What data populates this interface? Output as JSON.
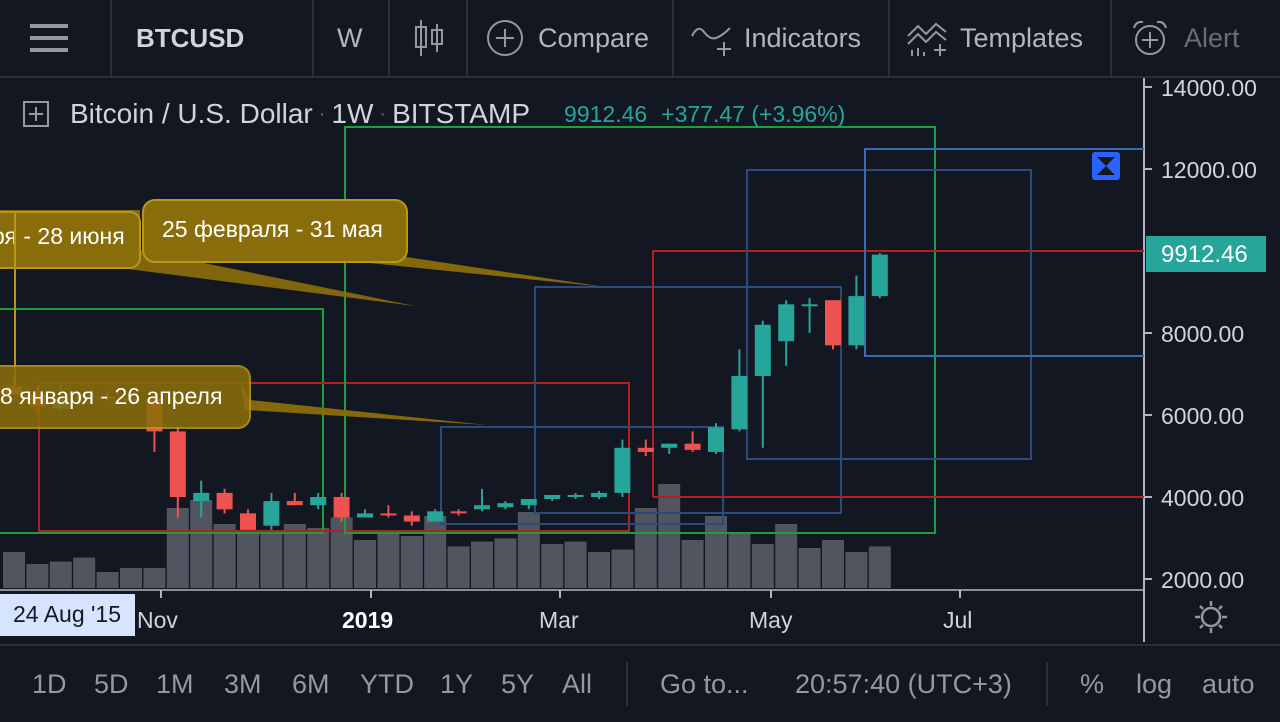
{
  "toolbar": {
    "symbol": "BTCUSD",
    "interval": "W",
    "compare_label": "Compare",
    "indicators_label": "Indicators",
    "templates_label": "Templates",
    "alert_label": "Alert"
  },
  "legend": {
    "name": "Bitcoin / U.S. Dollar",
    "interval": "1W",
    "exchange": "BITSTAMP",
    "price": "9912.46",
    "change": "+377.47 (+3.96%)"
  },
  "price_axis": {
    "ticks": [
      "14000.00",
      "12000.00",
      "8000.00",
      "6000.00",
      "4000.00",
      "2000.00"
    ],
    "current_price_label": "9912.46"
  },
  "time_axis": {
    "cursor_label": "24 Aug '15",
    "ticks": [
      "Nov",
      "2019",
      "Mar",
      "May",
      "Jul"
    ]
  },
  "callouts": [
    {
      "text": "ря - 28 июня"
    },
    {
      "text": "25 февраля - 31 мая"
    },
    {
      "text": "8 января - 26 апреля"
    }
  ],
  "bottom_bar": {
    "ranges": [
      "1D",
      "5D",
      "1M",
      "3M",
      "6M",
      "YTD",
      "1Y",
      "5Y",
      "All"
    ],
    "goto": "Go to...",
    "time": "20:57:40 (UTC+3)",
    "percent": "%",
    "log": "log",
    "auto": "auto"
  },
  "colors": {
    "up": "#26a69a",
    "down": "#ef5350",
    "volume": "#5d606b",
    "callout": "#8a6d0b",
    "background": "#131722"
  },
  "chart_data": {
    "type": "candlestick",
    "interval": "1W",
    "ylim": [
      2000,
      14000
    ],
    "current_price": 9912.46,
    "candles": [
      {
        "o": 6700,
        "h": 6900,
        "l": 6500,
        "c": 6500
      },
      {
        "o": 6500,
        "h": 6700,
        "l": 6100,
        "c": 6200
      },
      {
        "o": 6150,
        "h": 6800,
        "l": 6100,
        "c": 6400
      },
      {
        "o": 6400,
        "h": 6550,
        "l": 6300,
        "c": 6450
      },
      {
        "o": 6450,
        "h": 6600,
        "l": 6350,
        "c": 6400
      },
      {
        "o": 6400,
        "h": 6550,
        "l": 6300,
        "c": 6350
      },
      {
        "o": 6400,
        "h": 6500,
        "l": 5100,
        "c": 5600
      },
      {
        "o": 5600,
        "h": 5700,
        "l": 3500,
        "c": 4000
      },
      {
        "o": 3900,
        "h": 4400,
        "l": 3500,
        "c": 4100
      },
      {
        "o": 4100,
        "h": 4200,
        "l": 3600,
        "c": 3700
      },
      {
        "o": 3600,
        "h": 3700,
        "l": 3200,
        "c": 3200
      },
      {
        "o": 3300,
        "h": 4100,
        "l": 3200,
        "c": 3900
      },
      {
        "o": 3900,
        "h": 4100,
        "l": 3800,
        "c": 3800
      },
      {
        "o": 3800,
        "h": 4100,
        "l": 3700,
        "c": 4000
      },
      {
        "o": 4000,
        "h": 4100,
        "l": 3400,
        "c": 3500
      },
      {
        "o": 3500,
        "h": 3700,
        "l": 3500,
        "c": 3600
      },
      {
        "o": 3600,
        "h": 3800,
        "l": 3500,
        "c": 3550
      },
      {
        "o": 3550,
        "h": 3650,
        "l": 3300,
        "c": 3400
      },
      {
        "o": 3400,
        "h": 3700,
        "l": 3400,
        "c": 3650
      },
      {
        "o": 3650,
        "h": 3700,
        "l": 3550,
        "c": 3600
      },
      {
        "o": 3700,
        "h": 4200,
        "l": 3650,
        "c": 3800
      },
      {
        "o": 3750,
        "h": 3900,
        "l": 3700,
        "c": 3850
      },
      {
        "o": 3800,
        "h": 3950,
        "l": 3700,
        "c": 3950
      },
      {
        "o": 3950,
        "h": 4050,
        "l": 3900,
        "c": 4050
      },
      {
        "o": 4000,
        "h": 4100,
        "l": 3950,
        "c": 4050
      },
      {
        "o": 4000,
        "h": 4150,
        "l": 3950,
        "c": 4100
      },
      {
        "o": 4100,
        "h": 5400,
        "l": 4000,
        "c": 5200
      },
      {
        "o": 5200,
        "h": 5400,
        "l": 5000,
        "c": 5100
      },
      {
        "o": 5200,
        "h": 5300,
        "l": 5050,
        "c": 5300
      },
      {
        "o": 5300,
        "h": 5600,
        "l": 5100,
        "c": 5150
      },
      {
        "o": 5100,
        "h": 5800,
        "l": 5050,
        "c": 5700
      },
      {
        "o": 5650,
        "h": 7600,
        "l": 5600,
        "c": 6950
      },
      {
        "o": 6950,
        "h": 8300,
        "l": 5200,
        "c": 8200
      },
      {
        "o": 7800,
        "h": 8800,
        "l": 7200,
        "c": 8700
      },
      {
        "o": 8700,
        "h": 8850,
        "l": 8000,
        "c": 8700
      },
      {
        "o": 8800,
        "h": 8800,
        "l": 7600,
        "c": 7700
      },
      {
        "o": 7700,
        "h": 9400,
        "l": 7600,
        "c": 8900
      },
      {
        "o": 8900,
        "h": 9950,
        "l": 8850,
        "c": 9912.46
      }
    ],
    "volume_relative": [
      0.45,
      0.3,
      0.33,
      0.38,
      0.2,
      0.25,
      0.25,
      1.0,
      1.1,
      0.8,
      0.7,
      0.72,
      0.8,
      0.75,
      0.88,
      0.6,
      0.72,
      0.65,
      0.9,
      0.52,
      0.58,
      0.62,
      0.95,
      0.55,
      0.58,
      0.45,
      0.48,
      1.0,
      1.3,
      0.6,
      0.9,
      0.7,
      0.55,
      0.8,
      0.5,
      0.6,
      0.45,
      0.52
    ]
  }
}
